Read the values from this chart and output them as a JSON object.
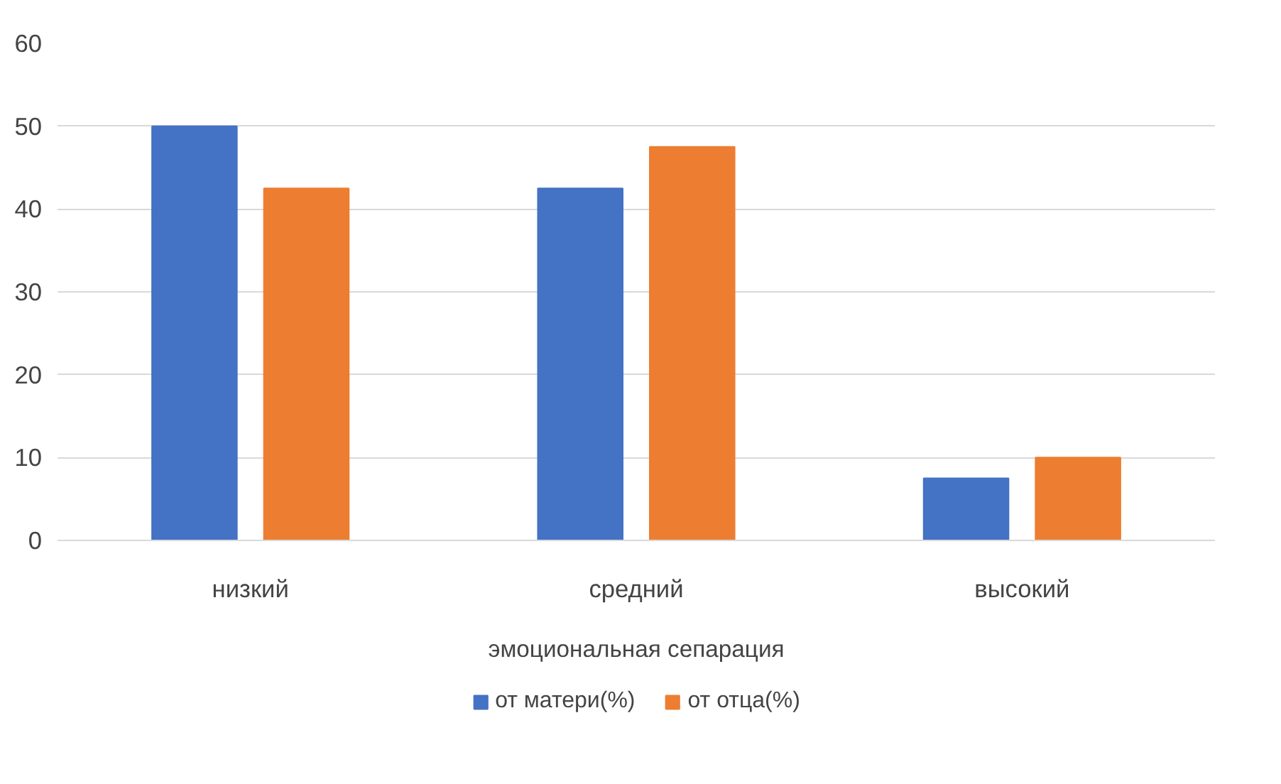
{
  "chart_data": {
    "type": "bar",
    "xlabel": "эмоциональная сепарация",
    "categories": [
      "низкий",
      "средний",
      "высокий"
    ],
    "series": [
      {
        "name": "от матери(%)",
        "color": "#4472c4",
        "values": [
          50,
          42.5,
          7.5
        ]
      },
      {
        "name": "от отца(%)",
        "color": "#ed7d31",
        "values": [
          42.5,
          47.5,
          10
        ]
      }
    ],
    "ylim": [
      0,
      60
    ],
    "yticks": [
      0,
      10,
      20,
      30,
      40,
      50,
      60
    ],
    "grid": "y",
    "legend": "bottom"
  }
}
